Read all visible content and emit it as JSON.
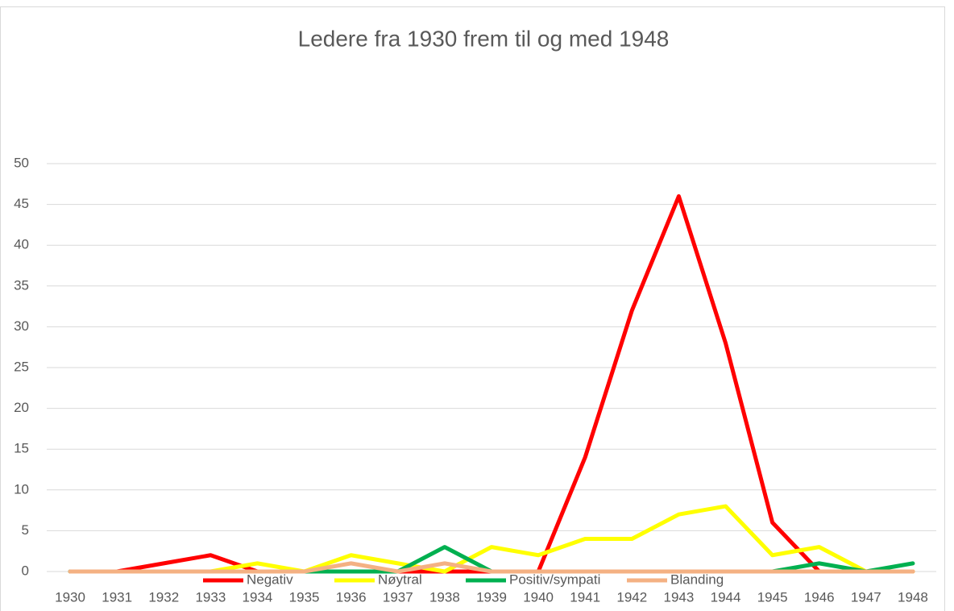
{
  "chart_data": {
    "type": "line",
    "title": "Ledere fra 1930 frem til og med 1948",
    "categories": [
      "1930",
      "1931",
      "1932",
      "1933",
      "1934",
      "1935",
      "1936",
      "1937",
      "1938",
      "1939",
      "1940",
      "1941",
      "1942",
      "1943",
      "1944",
      "1945",
      "1946",
      "1947",
      "1948"
    ],
    "series": [
      {
        "name": "Negativ",
        "color": "#ff0000",
        "values": [
          0,
          0,
          1,
          2,
          0,
          0,
          0,
          0,
          0,
          0,
          0,
          14,
          32,
          46,
          28,
          6,
          0,
          0,
          0
        ]
      },
      {
        "name": "Nøytral",
        "color": "#ffff00",
        "values": [
          0,
          0,
          0,
          0,
          1,
          0,
          2,
          1,
          0,
          3,
          2,
          4,
          4,
          7,
          8,
          2,
          3,
          0,
          0
        ]
      },
      {
        "name": "Positiv/sympati",
        "color": "#00b050",
        "values": [
          0,
          0,
          0,
          0,
          0,
          0,
          0,
          0,
          3,
          0,
          0,
          0,
          0,
          0,
          0,
          0,
          1,
          0,
          1
        ]
      },
      {
        "name": "Blanding",
        "color": "#f4b183",
        "values": [
          0,
          0,
          0,
          0,
          0,
          0,
          1,
          0,
          1,
          0,
          0,
          0,
          0,
          0,
          0,
          0,
          0,
          0,
          0
        ]
      }
    ],
    "ylim": [
      0,
      50
    ],
    "yticks": [
      0,
      5,
      10,
      15,
      20,
      25,
      30,
      35,
      40,
      45,
      50
    ],
    "grid": true,
    "legend": "bottom"
  }
}
